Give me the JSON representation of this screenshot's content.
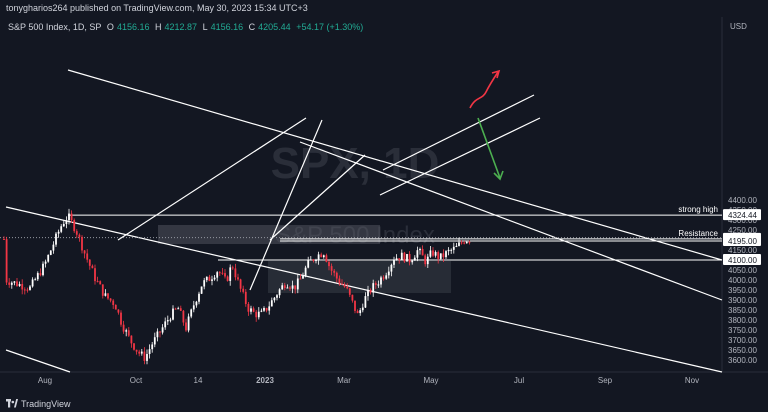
{
  "header": {
    "publish_line": "tonygharios264 published on TradingView.com, May 30, 2023 15:34 UTC+3"
  },
  "legend": {
    "symbol": "S&P 500 Index, 1D, SP",
    "open_label": "O",
    "open": "4156.16",
    "high_label": "H",
    "high": "4212.87",
    "low_label": "L",
    "low": "4156.16",
    "close_label": "C",
    "close": "4205.44",
    "change": "+54.17 (+1.30%)"
  },
  "currency": "USD",
  "watermark": {
    "ticker": "SPX, 1D",
    "name": "S&P 500 Index"
  },
  "footer": {
    "brand": "TradingView"
  },
  "colors": {
    "background": "#131722",
    "up": "#ffffff",
    "down": "#f23645",
    "text": "#d1d4dc",
    "arrow_up": "#f23645",
    "arrow_down": "#4caf50"
  },
  "chart_data": {
    "type": "candlestick",
    "y_ticks": [
      4400,
      4350,
      4300,
      4250,
      4200,
      4150,
      4100,
      4050,
      4000,
      3950,
      3900,
      3850,
      3800,
      3750,
      3700,
      3650,
      3600
    ],
    "y_tick_labels": [
      "4400.00",
      "4350.00",
      "4300.00",
      "4250.00",
      "4200.00",
      "4150.00",
      "4100.00",
      "4050.00",
      "4000.00",
      "3950.00",
      "3900.00",
      "3850.00",
      "3800.00",
      "3750.00",
      "3700.00",
      "3650.00",
      "3600.00"
    ],
    "ylim": [
      3580,
      4470
    ],
    "x_ticks": [
      "Aug",
      "Oct",
      "14",
      "2023",
      "Mar",
      "May",
      "Jul",
      "Sep",
      "Nov"
    ],
    "horizontal_levels": [
      {
        "value": 4324.44,
        "label": "strong high",
        "price_tag": "4324.44"
      },
      {
        "value": 4205.44,
        "label": "Resistance",
        "price_tag": "4205.44"
      },
      {
        "value": 4195.0,
        "label": "",
        "price_tag": "4195.00"
      },
      {
        "value": 4100.0,
        "label": "",
        "price_tag": "4100.00"
      }
    ],
    "last_close": 4205.44
  }
}
